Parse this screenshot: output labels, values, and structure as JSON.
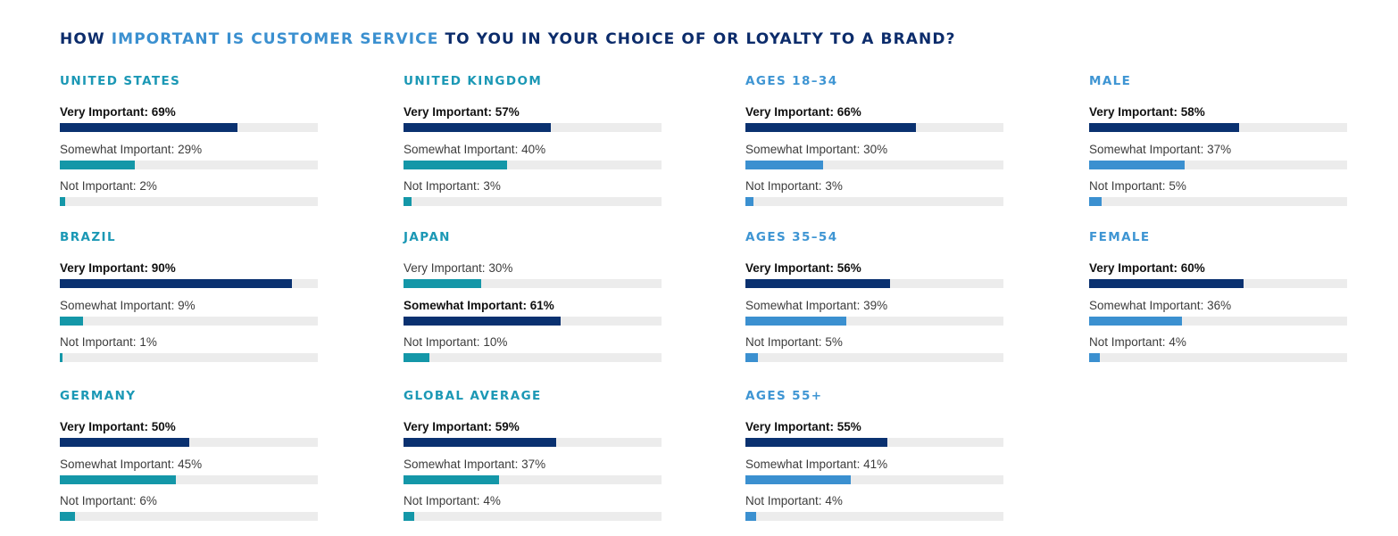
{
  "title": {
    "pre": "HOW ",
    "highlight": "IMPORTANT IS CUSTOMER SERVICE",
    "post": " TO YOU IN YOUR CHOICE OF OR LOYALTY TO A BRAND?"
  },
  "colors": {
    "navy": "#0c2c6b",
    "bar_dark": "#0a3170",
    "teal_head": "#1b98b5",
    "teal_bar": "#1497a8",
    "blue_head": "#3e95d3",
    "blue_bar": "#3b90d0",
    "track": "#ececec"
  },
  "chart_data": [
    {
      "type": "bar",
      "title": "UNITED STATES",
      "group": "country",
      "categories": [
        "Very Important",
        "Somewhat Important",
        "Not Important"
      ],
      "values": [
        69,
        29,
        2
      ],
      "emphasis": "Very Important",
      "xlim": [
        0,
        100
      ]
    },
    {
      "type": "bar",
      "title": "UNITED KINGDOM",
      "group": "country",
      "categories": [
        "Very Important",
        "Somewhat Important",
        "Not Important"
      ],
      "values": [
        57,
        40,
        3
      ],
      "emphasis": "Very Important",
      "xlim": [
        0,
        100
      ]
    },
    {
      "type": "bar",
      "title": "AGES 18–34",
      "group": "demographic",
      "categories": [
        "Very Important",
        "Somewhat Important",
        "Not Important"
      ],
      "values": [
        66,
        30,
        3
      ],
      "emphasis": "Very Important",
      "xlim": [
        0,
        100
      ]
    },
    {
      "type": "bar",
      "title": "MALE",
      "group": "demographic",
      "categories": [
        "Very Important",
        "Somewhat Important",
        "Not Important"
      ],
      "values": [
        58,
        37,
        5
      ],
      "emphasis": "Very Important",
      "xlim": [
        0,
        100
      ]
    },
    {
      "type": "bar",
      "title": "BRAZIL",
      "group": "country",
      "categories": [
        "Very Important",
        "Somewhat Important",
        "Not Important"
      ],
      "values": [
        90,
        9,
        1
      ],
      "emphasis": "Very Important",
      "xlim": [
        0,
        100
      ]
    },
    {
      "type": "bar",
      "title": "JAPAN",
      "group": "country",
      "categories": [
        "Very Important",
        "Somewhat Important",
        "Not Important"
      ],
      "values": [
        30,
        61,
        10
      ],
      "emphasis": "Somewhat Important",
      "xlim": [
        0,
        100
      ]
    },
    {
      "type": "bar",
      "title": "AGES 35–54",
      "group": "demographic",
      "categories": [
        "Very Important",
        "Somewhat Important",
        "Not Important"
      ],
      "values": [
        56,
        39,
        5
      ],
      "emphasis": "Very Important",
      "xlim": [
        0,
        100
      ]
    },
    {
      "type": "bar",
      "title": "FEMALE",
      "group": "demographic",
      "categories": [
        "Very Important",
        "Somewhat Important",
        "Not Important"
      ],
      "values": [
        60,
        36,
        4
      ],
      "emphasis": "Very Important",
      "xlim": [
        0,
        100
      ]
    },
    {
      "type": "bar",
      "title": "GERMANY",
      "group": "country",
      "categories": [
        "Very Important",
        "Somewhat Important",
        "Not Important"
      ],
      "values": [
        50,
        45,
        6
      ],
      "emphasis": "Very Important",
      "xlim": [
        0,
        100
      ]
    },
    {
      "type": "bar",
      "title": "GLOBAL AVERAGE",
      "group": "country",
      "categories": [
        "Very Important",
        "Somewhat Important",
        "Not Important"
      ],
      "values": [
        59,
        37,
        4
      ],
      "emphasis": "Very Important",
      "xlim": [
        0,
        100
      ]
    },
    {
      "type": "bar",
      "title": "AGES 55+",
      "group": "demographic",
      "categories": [
        "Very Important",
        "Somewhat Important",
        "Not Important"
      ],
      "values": [
        55,
        41,
        4
      ],
      "emphasis": "Very Important",
      "xlim": [
        0,
        100
      ]
    }
  ]
}
